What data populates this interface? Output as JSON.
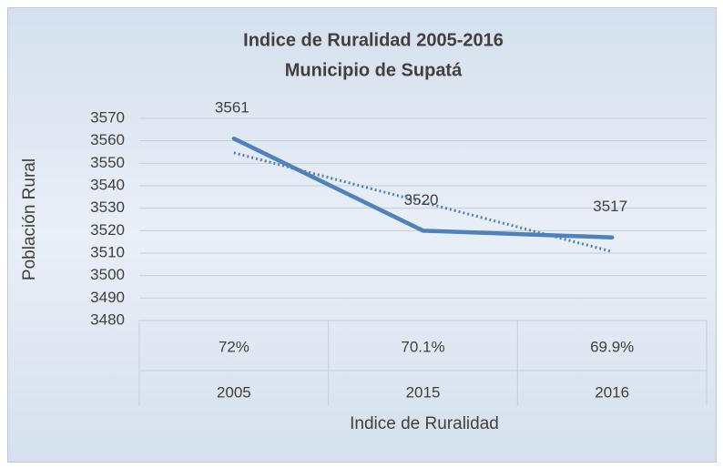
{
  "chart_data": {
    "type": "line",
    "title": "Indice de Ruralidad 2005-2016",
    "subtitle": "Municipio de Supatá",
    "x_label": "Indice de Ruralidad",
    "y_label": "Población Rural",
    "categories": [
      "2005",
      "2015",
      "2016"
    ],
    "category_sublabels": [
      "72%",
      "70.1%",
      "69.9%"
    ],
    "series": [
      {
        "name": "Población Rural",
        "color": "#4f81bd",
        "values": [
          3561,
          3520,
          3517
        ]
      }
    ],
    "trendline": "linear",
    "data_labels": true,
    "ylim": [
      3480,
      3570
    ],
    "yticks": [
      3480,
      3490,
      3500,
      3510,
      3520,
      3530,
      3540,
      3550,
      3560,
      3570
    ],
    "grid": true
  }
}
